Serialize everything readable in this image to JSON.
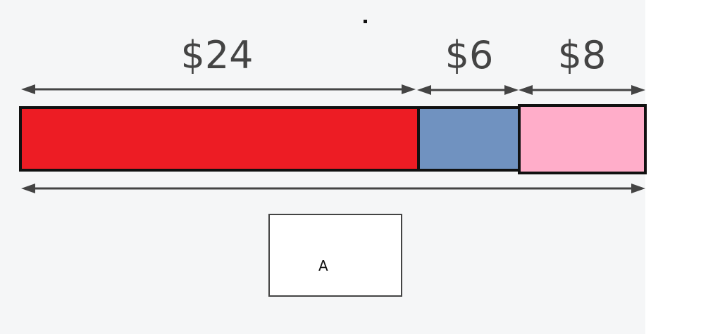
{
  "diagram": {
    "segments": [
      {
        "id": "red",
        "label": "$24",
        "value": 24,
        "color": "#ed1c24"
      },
      {
        "id": "blue",
        "label": "$6",
        "value": 6,
        "color": "#7092c0"
      },
      {
        "id": "pink",
        "label": "$8",
        "value": 8,
        "color": "#ffadc9"
      }
    ],
    "answer_box": {
      "label": "A"
    }
  }
}
